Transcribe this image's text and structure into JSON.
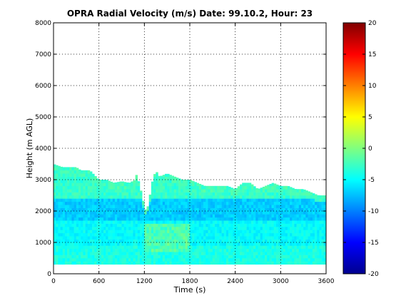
{
  "chart_data": {
    "type": "heatmap",
    "title": "OPRA Radial Velocity (m/s)  Date: 99.10.2, Hour: 23",
    "xlabel": "Time (s)",
    "ylabel": "Height (m AGL)",
    "xlim": [
      0,
      3600
    ],
    "ylim": [
      0,
      8000
    ],
    "xticks": [
      0,
      600,
      1200,
      1800,
      2400,
      3000,
      3600
    ],
    "yticks": [
      0,
      1000,
      2000,
      3000,
      4000,
      5000,
      6000,
      7000,
      8000
    ],
    "grid": true,
    "colorbar": {
      "colormap": "jet",
      "limits": [
        -20,
        20
      ],
      "ticks": [
        -20,
        -15,
        -10,
        -5,
        0,
        5,
        10,
        15,
        20
      ]
    },
    "data_bottom_m": 300,
    "echo_top_profile": {
      "x": [
        0,
        60,
        120,
        300,
        360,
        480,
        560,
        600,
        700,
        800,
        900,
        1000,
        1080,
        1100,
        1150,
        1180,
        1200,
        1230,
        1260,
        1300,
        1350,
        1400,
        1500,
        1600,
        1700,
        1800,
        1900,
        2000,
        2100,
        2200,
        2300,
        2400,
        2500,
        2600,
        2700,
        2800,
        2900,
        3000,
        3100,
        3200,
        3300,
        3400,
        3500,
        3600
      ],
      "y": [
        3500,
        3450,
        3400,
        3400,
        3300,
        3300,
        3100,
        3000,
        3000,
        2900,
        2950,
        2900,
        3000,
        3200,
        2700,
        2400,
        2100,
        2000,
        2300,
        2900,
        3300,
        3100,
        3200,
        3100,
        3000,
        3000,
        2900,
        2800,
        2800,
        2800,
        2800,
        2700,
        2900,
        2900,
        2700,
        2800,
        2900,
        2800,
        2800,
        2700,
        2700,
        2600,
        2500,
        2500
      ]
    },
    "velocity_layers": [
      {
        "from_m": 300,
        "to_m": 900,
        "value": -4
      },
      {
        "from_m": 900,
        "to_m": 1700,
        "value": -5
      },
      {
        "from_m": 1700,
        "to_m": 2400,
        "value": -7
      },
      {
        "from_m": 2400,
        "to_m": 3600,
        "value": -3
      }
    ],
    "weak_zone": {
      "x_from": 1200,
      "x_to": 1800,
      "y_from": 700,
      "y_to": 1600,
      "value": -2
    }
  }
}
